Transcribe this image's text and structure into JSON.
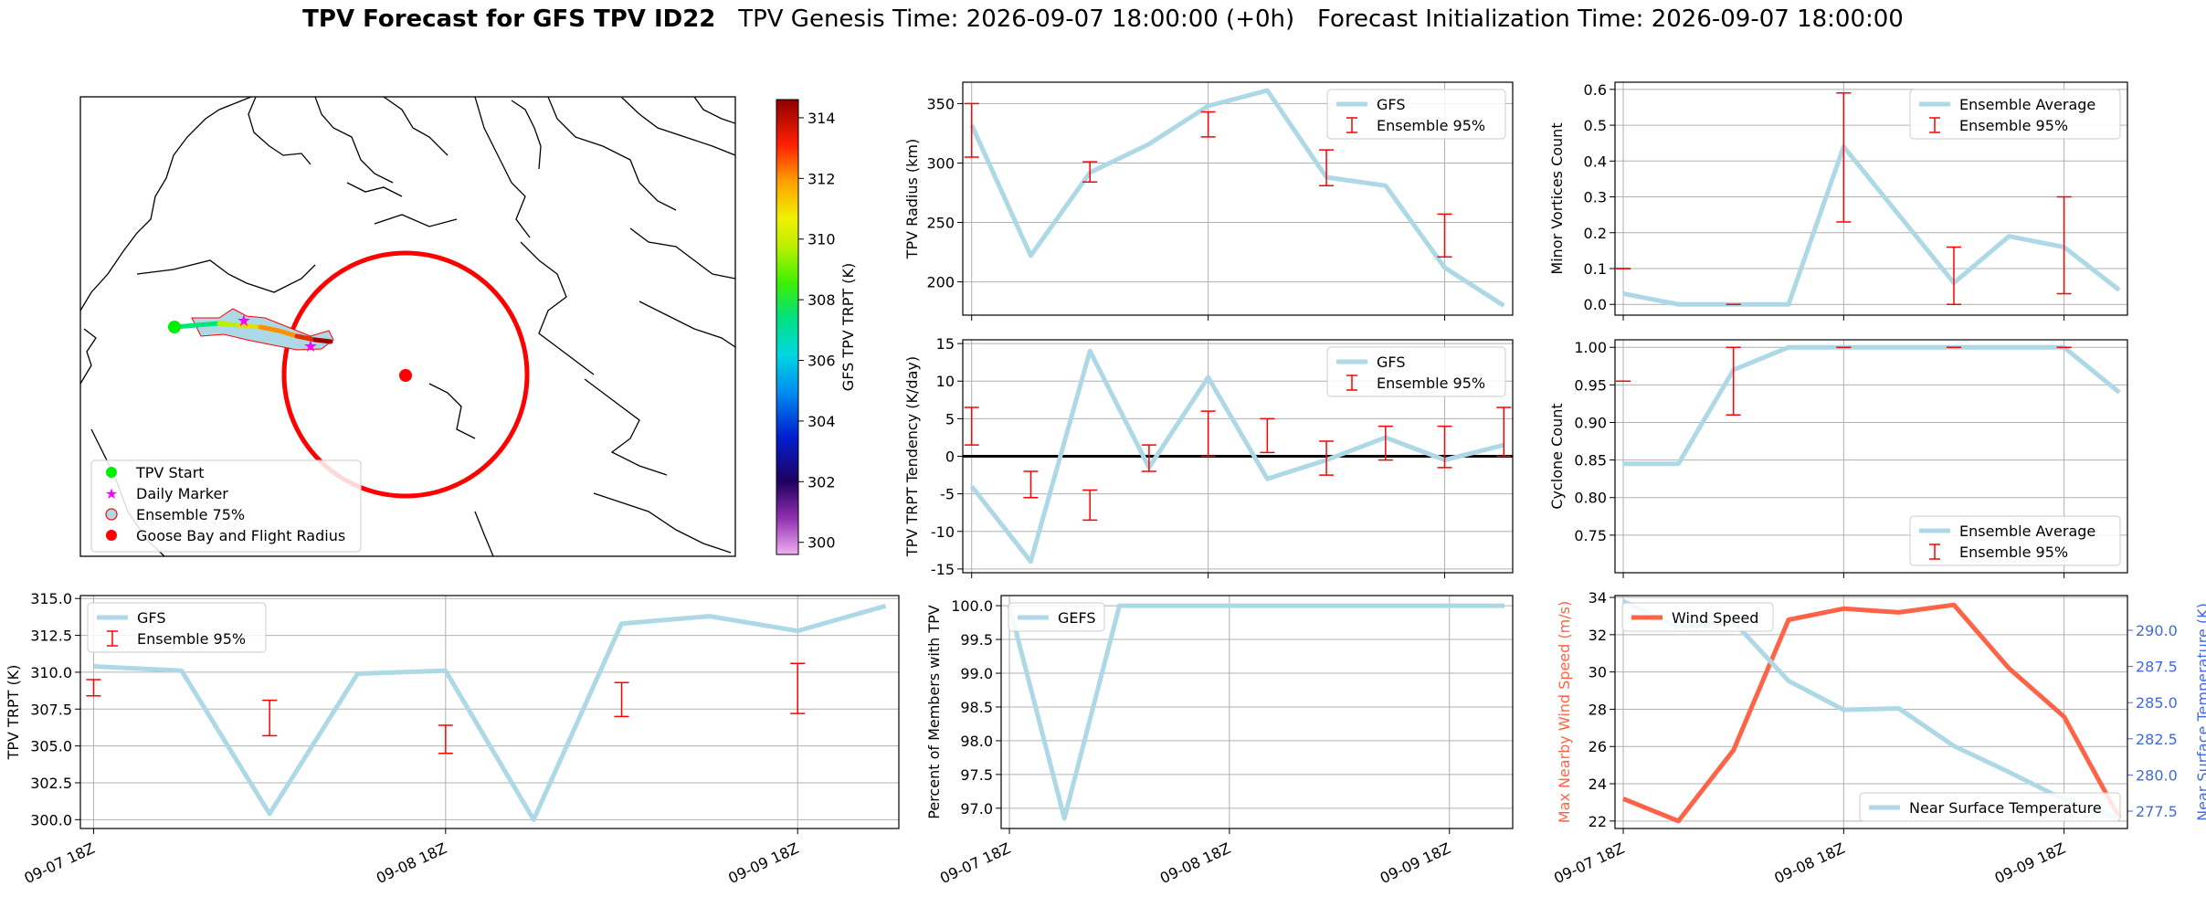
{
  "suptitle": {
    "bold": "TPV Forecast for GFS TPV ID22",
    "genesis": "TPV Genesis Time: 2026-09-07 18:00:00 (+0h)",
    "init": "Forecast Initialization Time: 2026-09-07 18:00:00"
  },
  "colors": {
    "line": "#add8e6",
    "errorbar": "#ff0000",
    "wind": "#ff6347",
    "temp_axis": "#4169e1",
    "zero_line": "#000000"
  },
  "time_ticks": [
    "09-07 18Z",
    "09-08 18Z",
    "09-09 18Z"
  ],
  "map_panel": {
    "colorbar_label": "GFS TPV TRPT (K)",
    "colorbar_ticks": [
      "300",
      "302",
      "304",
      "306",
      "308",
      "310",
      "312",
      "314"
    ],
    "colormap": "gist_ncar-like (300 to 314 K)",
    "legend": [
      {
        "label": "TPV Start",
        "symbol": "green-dot"
      },
      {
        "label": "Daily Marker",
        "symbol": "magenta-star"
      },
      {
        "label": "Ensemble 75%",
        "symbol": "lightblue-red-circle"
      },
      {
        "label": "Goose Bay and Flight Radius",
        "symbol": "red-dot"
      }
    ],
    "track_colors": [
      "#00e676",
      "#b8f000",
      "#e0e000",
      "#ff9000",
      "#e03000",
      "#a00000"
    ]
  },
  "chart_data": [
    {
      "type": "line",
      "panel": "tpv-radius",
      "ylabel": "TPV Radius (km)",
      "ylim": [
        172,
        368
      ],
      "yticks": [
        200,
        250,
        300,
        350
      ],
      "grid": true,
      "legend_position": "upper right",
      "x": [
        0,
        1,
        2,
        3,
        4,
        5,
        6,
        7,
        8,
        9
      ],
      "series": [
        {
          "name": "GFS",
          "values": [
            332,
            222,
            292,
            316,
            348,
            361,
            288,
            281,
            212,
            180
          ]
        }
      ],
      "errorbars": {
        "name": "Ensemble 95%",
        "x": [
          0,
          2,
          4,
          6,
          8
        ],
        "low": [
          305,
          284,
          322,
          281,
          221
        ],
        "high": [
          350,
          301,
          343,
          311,
          257
        ]
      }
    },
    {
      "type": "line",
      "panel": "minor-vortices",
      "ylabel": "Minor Vortices Count",
      "ylim": [
        -0.03,
        0.62
      ],
      "yticks": [
        "0.0",
        "0.1",
        "0.2",
        "0.3",
        "0.4",
        "0.5",
        "0.6"
      ],
      "grid": true,
      "legend_position": "upper right",
      "x": [
        0,
        1,
        2,
        3,
        4,
        5,
        6,
        7,
        8,
        9
      ],
      "series": [
        {
          "name": "Ensemble Average",
          "values": [
            0.03,
            0.0,
            0.0,
            0.0,
            0.44,
            0.25,
            0.06,
            0.19,
            0.16,
            0.04
          ]
        }
      ],
      "errorbars": {
        "name": "Ensemble 95%",
        "x": [
          0,
          2,
          4,
          6,
          8
        ],
        "low": [
          0.1,
          0.0,
          0.23,
          0.0,
          0.03
        ],
        "high": [
          0.1,
          0.0,
          0.59,
          0.16,
          0.3
        ]
      }
    },
    {
      "type": "line",
      "panel": "trpt-tendency",
      "ylabel": "TPV TRPT Tendency (K/day)",
      "ylim": [
        -15.5,
        15.5
      ],
      "yticks": [
        -15,
        -10,
        -5,
        0,
        5,
        10,
        15
      ],
      "grid": true,
      "legend_position": "upper right",
      "x": [
        0,
        1,
        2,
        3,
        4,
        5,
        6,
        7,
        8,
        9
      ],
      "series": [
        {
          "name": "GFS",
          "values": [
            -4,
            -14,
            14,
            -1.5,
            10.5,
            -3,
            -0.5,
            2.5,
            -0.5,
            1.5
          ]
        }
      ],
      "zero_line": 0,
      "errorbars": {
        "name": "Ensemble 95%",
        "x": [
          0,
          1,
          2,
          3,
          4,
          5,
          6,
          7,
          8,
          9
        ],
        "low": [
          1.5,
          -5.5,
          -8.5,
          -2,
          0,
          0.5,
          -2.5,
          -0.5,
          -1.5,
          0
        ],
        "high": [
          6.5,
          -2,
          -4.5,
          1.5,
          6,
          5,
          2,
          4,
          4,
          6.5
        ]
      }
    },
    {
      "type": "line",
      "panel": "cyclone-count",
      "ylabel": "Cyclone Count",
      "ylim": [
        0.7,
        1.01
      ],
      "yticks": [
        "0.75",
        "0.80",
        "0.85",
        "0.90",
        "0.95",
        "1.00"
      ],
      "grid": true,
      "legend_position": "lower right",
      "x": [
        0,
        1,
        2,
        3,
        4,
        5,
        6,
        7,
        8,
        9
      ],
      "series": [
        {
          "name": "Ensemble Average",
          "values": [
            0.845,
            0.845,
            0.97,
            1.0,
            1.0,
            1.0,
            1.0,
            1.0,
            1.0,
            0.94
          ]
        }
      ],
      "errorbars": {
        "name": "Ensemble 95%",
        "x": [
          0,
          2,
          4,
          6,
          8
        ],
        "low": [
          0.955,
          0.91,
          1.0,
          1.0,
          1.0
        ],
        "high": [
          0.955,
          1.0,
          1.0,
          1.0,
          1.0
        ]
      }
    },
    {
      "type": "line",
      "panel": "trpt",
      "ylabel": "TPV TRPT (K)",
      "ylim": [
        299.4,
        315.2
      ],
      "yticks": [
        "300.0",
        "302.5",
        "305.0",
        "307.5",
        "310.0",
        "312.5",
        "315.0"
      ],
      "grid": true,
      "legend_position": "upper left",
      "x": [
        0,
        1,
        2,
        3,
        4,
        5,
        6,
        7,
        8,
        9
      ],
      "series": [
        {
          "name": "GFS",
          "values": [
            310.4,
            310.1,
            300.4,
            309.9,
            310.1,
            300.0,
            313.3,
            313.8,
            312.8,
            314.5
          ]
        }
      ],
      "errorbars": {
        "name": "Ensemble 95%",
        "x": [
          0,
          2,
          4,
          6,
          8
        ],
        "low": [
          308.4,
          305.7,
          304.5,
          307.0,
          307.2
        ],
        "high": [
          309.5,
          308.1,
          306.4,
          309.3,
          310.6
        ]
      }
    },
    {
      "type": "line",
      "panel": "members-percent",
      "ylabel": "Percent of Members with TPV",
      "ylim": [
        96.7,
        100.15
      ],
      "yticks": [
        "97.0",
        "97.5",
        "98.0",
        "98.5",
        "99.0",
        "99.5",
        "100.0"
      ],
      "grid": true,
      "legend_position": "upper left",
      "x": [
        0,
        1,
        2,
        3,
        4,
        5,
        6,
        7,
        8,
        9
      ],
      "series": [
        {
          "name": "GEFS",
          "values": [
            100,
            96.85,
            100,
            100,
            100,
            100,
            100,
            100,
            100,
            100
          ]
        }
      ]
    },
    {
      "type": "line",
      "panel": "wind-temperature",
      "ylabel": "Max Nearby Wind Speed (m/s)",
      "y2label": "Near Surface Temperature (K)",
      "ylim": [
        21.6,
        34.1
      ],
      "yticks": [
        22,
        24,
        26,
        28,
        30,
        32,
        34
      ],
      "y2lim": [
        276.3,
        292.4
      ],
      "y2ticks": [
        "277.5",
        "280.0",
        "282.5",
        "285.0",
        "287.5",
        "290.0"
      ],
      "grid": true,
      "x": [
        0,
        1,
        2,
        3,
        4,
        5,
        6,
        7,
        8,
        9
      ],
      "series": [
        {
          "name": "Wind Speed",
          "axis": "left",
          "values": [
            23.2,
            22.0,
            25.8,
            32.8,
            33.4,
            33.2,
            33.6,
            30.2,
            27.6,
            22.2
          ]
        },
        {
          "name": "Near Surface Temperature",
          "axis": "right",
          "values": [
            292.0,
            290.2,
            290.6,
            286.5,
            284.5,
            284.6,
            282.0,
            280.2,
            278.3,
            277.0
          ]
        }
      ]
    }
  ]
}
